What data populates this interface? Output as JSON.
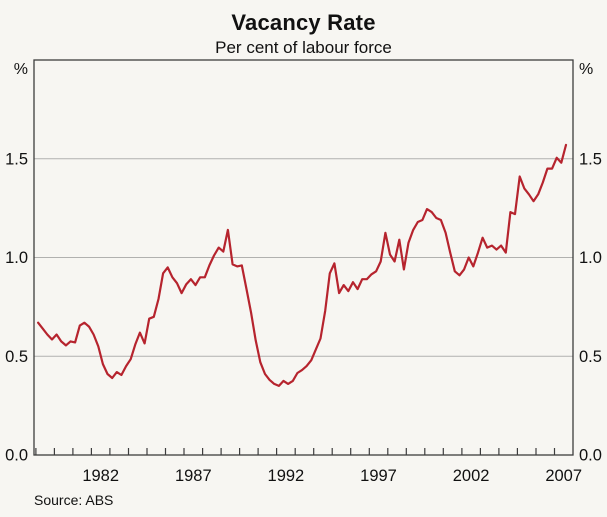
{
  "header": {
    "title": "Vacancy Rate",
    "subtitle": "Per cent of labour force"
  },
  "footer": {
    "source": "Source: ABS"
  },
  "axes": {
    "unit_left": "%",
    "unit_right": "%",
    "ylim": [
      0,
      2.0
    ],
    "y_gridlines": [
      0.5,
      1.0,
      1.5
    ],
    "y_ticks": [
      {
        "value": 0,
        "label": "0.0"
      },
      {
        "value": 0.5,
        "label": "0.5"
      },
      {
        "value": 1.0,
        "label": "1.0"
      },
      {
        "value": 1.5,
        "label": "1.5"
      }
    ],
    "xlim": [
      1978.9,
      2008.0
    ],
    "x_minor_tick_start_year": 1979,
    "x_minor_tick_end_year": 2007,
    "x_labeled_years": [
      1982,
      1987,
      1992,
      1997,
      2002,
      2007
    ]
  },
  "chart_data": {
    "type": "line",
    "title": "Vacancy Rate",
    "subtitle": "Per cent of labour force",
    "ylabel": "%",
    "ylim": [
      0,
      2.0
    ],
    "gridlines": [
      0.5,
      1.0,
      1.5
    ],
    "x_tick_labels": [
      1982,
      1987,
      1992,
      1997,
      2002,
      2007
    ],
    "legend": "none",
    "grid": "horizontal",
    "source": "Source: ABS",
    "series": [
      {
        "name": "Vacancy rate",
        "frequency": "quarterly",
        "x_start": 1979.12,
        "x_step": 0.25,
        "color": "#b6242e",
        "values": [
          0.67,
          0.64,
          0.61,
          0.585,
          0.61,
          0.575,
          0.555,
          0.575,
          0.57,
          0.655,
          0.67,
          0.65,
          0.61,
          0.55,
          0.46,
          0.41,
          0.39,
          0.42,
          0.405,
          0.45,
          0.485,
          0.56,
          0.62,
          0.565,
          0.69,
          0.7,
          0.79,
          0.92,
          0.95,
          0.9,
          0.87,
          0.82,
          0.865,
          0.89,
          0.86,
          0.9,
          0.9,
          0.96,
          1.01,
          1.05,
          1.03,
          1.14,
          0.965,
          0.955,
          0.96,
          0.84,
          0.72,
          0.58,
          0.47,
          0.41,
          0.38,
          0.36,
          0.35,
          0.375,
          0.36,
          0.375,
          0.415,
          0.43,
          0.45,
          0.48,
          0.535,
          0.59,
          0.73,
          0.92,
          0.97,
          0.82,
          0.86,
          0.83,
          0.875,
          0.84,
          0.89,
          0.89,
          0.915,
          0.93,
          0.98,
          1.125,
          1.015,
          0.98,
          1.09,
          0.94,
          1.075,
          1.14,
          1.18,
          1.19,
          1.245,
          1.23,
          1.2,
          1.19,
          1.125,
          1.025,
          0.93,
          0.91,
          0.94,
          1.0,
          0.955,
          1.025,
          1.1,
          1.05,
          1.06,
          1.04,
          1.06,
          1.025,
          1.23,
          1.22,
          1.41,
          1.35,
          1.32,
          1.285,
          1.32,
          1.38,
          1.45,
          1.45,
          1.505,
          1.48,
          1.57
        ]
      }
    ]
  },
  "colors": {
    "background": "#f7f6f2",
    "plot_border": "#3d3d3d",
    "gridline": "#b1b1af",
    "series_line": "#b6242e",
    "text": "#111111"
  }
}
